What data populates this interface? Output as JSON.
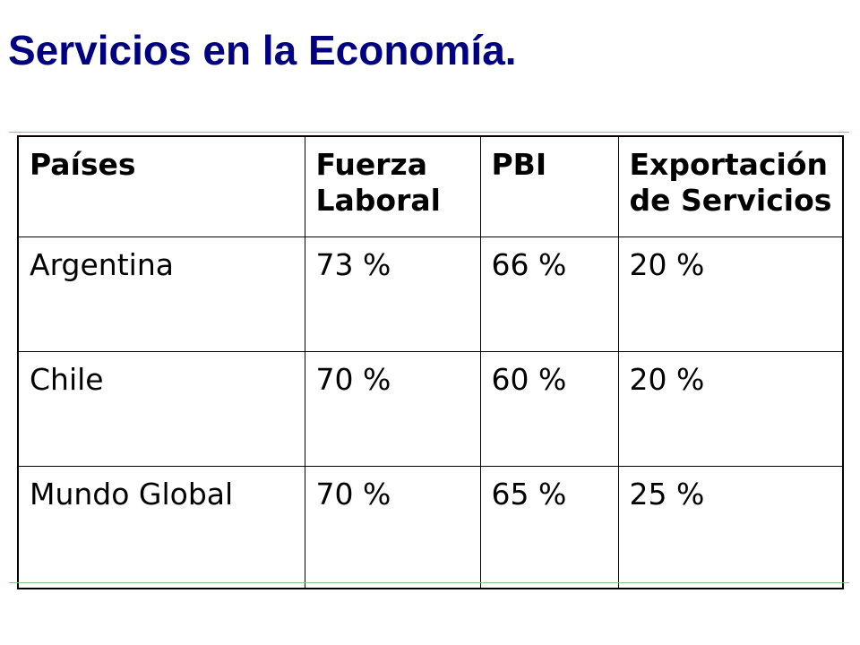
{
  "title": "Servicios en la Economía.",
  "colors": {
    "title": "#000080",
    "rule": "#8fbf8f",
    "border": "#000000"
  },
  "table": {
    "headers": [
      "Países",
      "Fuerza Laboral",
      "PBI",
      "Exportación de Servicios"
    ],
    "rows": [
      [
        "Argentina",
        "73 %",
        "66 %",
        "20 %"
      ],
      [
        "Chile",
        "70 %",
        "60 %",
        "20 %"
      ],
      [
        "Mundo Global",
        "70 %",
        "65 %",
        "25 %"
      ]
    ]
  }
}
